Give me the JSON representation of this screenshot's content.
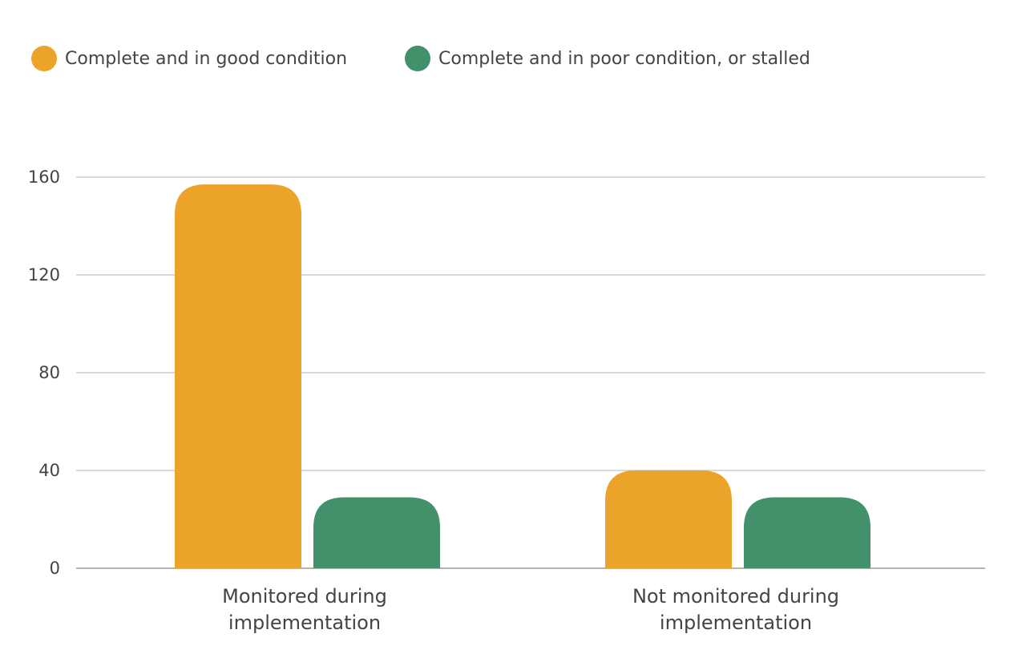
{
  "chart_data": {
    "type": "bar",
    "categories": [
      [
        "Monitored during",
        "implementation"
      ],
      [
        "Not monitored during",
        "implementation"
      ]
    ],
    "series": [
      {
        "name": "Complete and in good condition",
        "values": [
          157,
          40
        ],
        "color": "#EBA32A"
      },
      {
        "name": "Complete and in poor condition, or stalled",
        "values": [
          29,
          29
        ],
        "color": "#43916A"
      }
    ],
    "yticks": [
      0,
      40,
      80,
      120,
      160
    ],
    "ylim": [
      0,
      160
    ],
    "grid": true,
    "legend_position": "top-left",
    "xlabel": "",
    "ylabel": "",
    "title": ""
  }
}
